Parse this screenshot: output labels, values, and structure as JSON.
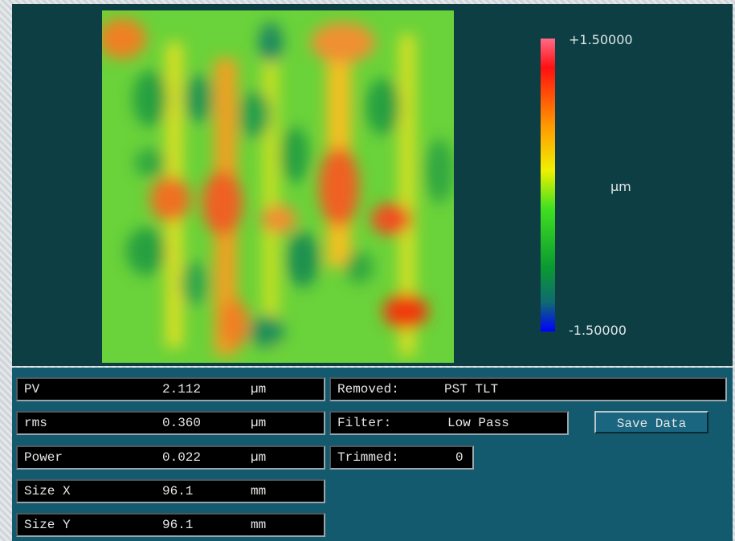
{
  "colorbar": {
    "max_label": "+1.50000",
    "unit": "µm",
    "min_label": "-1.50000"
  },
  "stats": [
    {
      "label": "PV",
      "value": "2.112",
      "unit": "µm"
    },
    {
      "label": "rms",
      "value": "0.360",
      "unit": "µm"
    },
    {
      "label": "Power",
      "value": "0.022",
      "unit": "µm"
    },
    {
      "label": "Size X",
      "value": "96.1",
      "unit": "mm"
    },
    {
      "label": "Size Y",
      "value": "96.1",
      "unit": "mm"
    }
  ],
  "info": {
    "removed": {
      "label": "Removed:",
      "value": "PST TLT"
    },
    "filter": {
      "label": "Filter:",
      "value": "Low Pass"
    },
    "trimmed": {
      "label": "Trimmed:",
      "value": "0"
    }
  },
  "button": "Save Data"
}
